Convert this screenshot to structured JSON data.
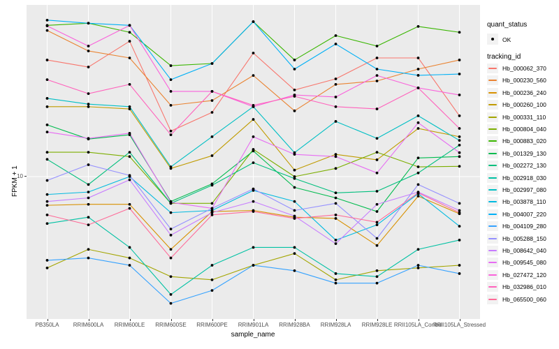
{
  "chart_data": {
    "type": "line",
    "title": "",
    "xlabel": "sample_name",
    "ylabel": "FPKM + 1",
    "y_scale": "log10",
    "ylim": [
      1,
      157
    ],
    "y_ticks": [
      {
        "value": 10,
        "label": "10"
      }
    ],
    "grid": {
      "color": "#FFFFFF",
      "vertical": "one-per-category",
      "horizontal_values": [
        10
      ]
    },
    "panel_bg": "#EBEBEB",
    "point_color": "#000000",
    "legend_position": "right",
    "x_categories": [
      "PB350LA",
      "RRIM600LA",
      "RRIM600LE",
      "RRIM600SE",
      "RRIM600PE",
      "RRIM901LA",
      "RRIM928BA",
      "RRIM928LA",
      "RRIM928LE",
      "RRII105LA_Control",
      "RRII105LA_Stressed"
    ],
    "series": [
      {
        "name": "Hb_000062_370",
        "color": "#F8766D",
        "values": [
          65.3,
          58.3,
          88.3,
          20.8,
          28.1,
          73.0,
          40.3,
          48.2,
          67.5,
          67.5,
          26.6
        ]
      },
      {
        "name": "Hb_000230_560",
        "color": "#EA8331",
        "values": [
          105,
          75.5,
          67.5,
          31.5,
          34.0,
          50.9,
          28.8,
          44.1,
          46.6,
          56.4,
          65.3
        ]
      },
      {
        "name": "Hb_000236_240",
        "color": "#D89000",
        "values": [
          6.3,
          6.4,
          6.4,
          3.1,
          5.7,
          5.8,
          5.2,
          5.1,
          3.3,
          7.3,
          5.5
        ]
      },
      {
        "name": "Hb_000260_100",
        "color": "#C09B00",
        "values": [
          30.8,
          30.8,
          29.7,
          11.4,
          14.0,
          25.1,
          11.1,
          14.3,
          13.1,
          21.7,
          19.0
        ]
      },
      {
        "name": "Hb_000331_110",
        "color": "#A3A500",
        "values": [
          2.3,
          3.1,
          2.7,
          2.0,
          1.9,
          2.4,
          2.9,
          1.9,
          2.2,
          2.3,
          2.4
        ]
      },
      {
        "name": "Hb_000804_040",
        "color": "#7CAE00",
        "values": [
          14.8,
          14.8,
          13.8,
          6.5,
          6.5,
          15.5,
          10.0,
          11.4,
          14.8,
          11.7,
          11.8
        ]
      },
      {
        "name": "Hb_000883_020",
        "color": "#39B600",
        "values": [
          114,
          118,
          102,
          59.6,
          61.7,
          121,
          65.3,
          96.7,
          81.7,
          112,
          102
        ]
      },
      {
        "name": "Hb_001329_130",
        "color": "#00BB4E",
        "values": [
          23.0,
          18.3,
          19.6,
          6.7,
          8.9,
          15.1,
          8.4,
          7.1,
          5.7,
          13.5,
          13.8
        ]
      },
      {
        "name": "Hb_002272_130",
        "color": "#00BF7D",
        "values": [
          13.2,
          8.8,
          14.8,
          6.5,
          8.7,
          12.5,
          9.7,
          7.7,
          7.9,
          10.6,
          16.6
        ]
      },
      {
        "name": "Hb_002918_030",
        "color": "#00C1A3",
        "values": [
          4.7,
          5.2,
          3.2,
          1.5,
          2.4,
          3.2,
          3.2,
          2.1,
          2.0,
          3.1,
          3.6
        ]
      },
      {
        "name": "Hb_002997_080",
        "color": "#00BFC4",
        "values": [
          35.2,
          32.1,
          30.8,
          11.7,
          19.0,
          30.8,
          14.7,
          24.3,
          18.5,
          26.6,
          17.9
        ]
      },
      {
        "name": "Hb_003878_110",
        "color": "#00BAE0",
        "values": [
          7.5,
          7.8,
          10.0,
          5.6,
          5.8,
          8.0,
          6.7,
          3.6,
          4.6,
          7.6,
          4.5
        ]
      },
      {
        "name": "Hb_004007_220",
        "color": "#00B0F6",
        "values": [
          124,
          118,
          114,
          47.6,
          61.7,
          121,
          56.4,
          84.5,
          56.4,
          51.0,
          52.1
        ]
      },
      {
        "name": "Hb_004109_280",
        "color": "#35A2FF",
        "values": [
          2.6,
          2.7,
          2.4,
          1.3,
          1.6,
          2.4,
          2.2,
          1.8,
          1.8,
          2.4,
          2.1
        ]
      },
      {
        "name": "Hb_005288_150",
        "color": "#9590FF",
        "values": [
          9.4,
          12.1,
          10.2,
          4.3,
          6.0,
          8.2,
          5.8,
          6.5,
          3.7,
          8.8,
          6.5
        ]
      },
      {
        "name": "Hb_008642_040",
        "color": "#C77CFF",
        "values": [
          6.7,
          7.1,
          9.5,
          3.9,
          5.6,
          6.7,
          5.3,
          3.4,
          6.4,
          7.8,
          5.8
        ]
      },
      {
        "name": "Hb_009545_080",
        "color": "#E76BF3",
        "values": [
          20.5,
          18.5,
          20.1,
          6.6,
          6.0,
          19.0,
          14.3,
          13.8,
          10.6,
          23.8,
          14.7
        ]
      },
      {
        "name": "Hb_027472_120",
        "color": "#FA62DB",
        "values": [
          113,
          81.7,
          114,
          39.4,
          39.4,
          30.8,
          37.2,
          36.0,
          50.9,
          41.7,
          37.2
        ]
      },
      {
        "name": "Hb_032986_010",
        "color": "#FF62BC",
        "values": [
          47.6,
          38.0,
          44.1,
          19.6,
          39.4,
          31.5,
          36.4,
          30.8,
          29.7,
          41.7,
          21.7
        ]
      },
      {
        "name": "Hb_065500_060",
        "color": "#FF6A98",
        "values": [
          5.4,
          4.6,
          6.0,
          2.7,
          5.4,
          5.7,
          5.1,
          5.4,
          4.8,
          7.7,
          5.6
        ]
      }
    ]
  },
  "legend": {
    "quant_status": {
      "title": "quant_status",
      "items": [
        {
          "label": "OK",
          "symbol": "black-point"
        }
      ]
    },
    "tracking": {
      "title": "tracking_id"
    }
  }
}
